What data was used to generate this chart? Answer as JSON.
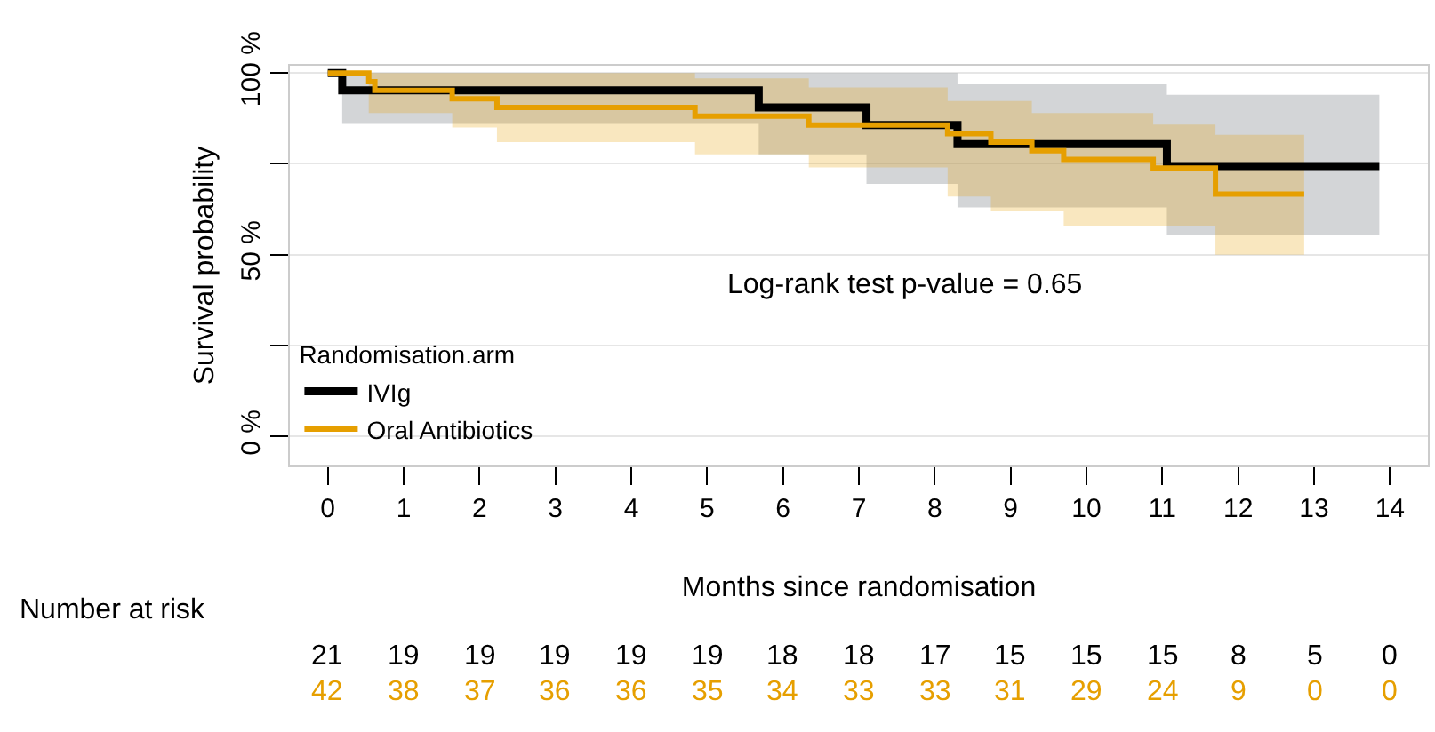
{
  "chart_data": {
    "type": "step",
    "xlabel": "Months since randomisation",
    "ylabel": "Survival probability",
    "legend_title": "Randomisation.arm",
    "xlim": [
      -0.5,
      14.5
    ],
    "xticks": [
      0,
      1,
      2,
      3,
      4,
      5,
      6,
      7,
      8,
      9,
      10,
      11,
      12,
      13,
      14
    ],
    "ylim": [
      -8,
      102
    ],
    "yticks": [
      {
        "value": 0,
        "label": "0 %"
      },
      {
        "value": 25,
        "label": null
      },
      {
        "value": 50,
        "label": "50 %"
      },
      {
        "value": 75,
        "label": null
      },
      {
        "value": 100,
        "label": "100 %"
      }
    ],
    "grid": "y",
    "legend": "bottom left",
    "marker": "none",
    "line_style": "solid",
    "series": [
      {
        "name": "IVIg",
        "color": "#000000",
        "x": [
          0,
          0.19,
          5.68,
          7.1,
          8.3,
          11.06,
          13.86
        ],
        "values": [
          100,
          95.2,
          90.5,
          85.7,
          80.4,
          74.4,
          74.4
        ],
        "lower": [
          100,
          86,
          77.6,
          69.5,
          63,
          55.5,
          55.5
        ],
        "upper": [
          100,
          100,
          100,
          100,
          97,
          94,
          94
        ]
      },
      {
        "name": "Oral Antibiotics",
        "color": "#e69f00",
        "x": [
          0,
          0.54,
          0.62,
          1.64,
          2.23,
          4.84,
          6.34,
          8.17,
          8.74,
          9.28,
          9.7,
          10.88,
          11.7,
          12.87
        ],
        "values": [
          100,
          97.6,
          95.2,
          92.9,
          90.5,
          88.1,
          85.7,
          83.3,
          81,
          78.6,
          76.2,
          73.8,
          66.7,
          66.7
        ],
        "lower": [
          100,
          89,
          89,
          85,
          81,
          77.6,
          74,
          66,
          62,
          62,
          58,
          58,
          50,
          50
        ],
        "upper": [
          100,
          100,
          100,
          100,
          100,
          98.5,
          96,
          92.3,
          92.3,
          89,
          89,
          85.8,
          83,
          83
        ]
      }
    ],
    "annotations": [
      "Log-rank test p-value = 0.65",
      "Number at risk",
      "21 19 19 19 19 19 18 18 17 15 15 15 8 5 0",
      "42 38 37 36 36 35 34 33 33 31 29 24 9 0 0"
    ]
  }
}
